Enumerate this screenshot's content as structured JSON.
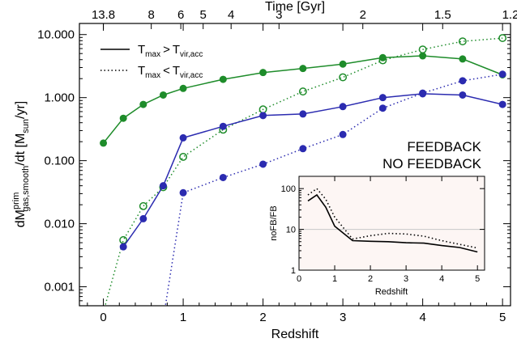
{
  "chart_data": [
    {
      "type": "line",
      "xlabel": "Redshift",
      "ylabel": "dM^prim_gas,smooth/dt [M_sun/yr]",
      "ylabel_parts": {
        "base": "dM",
        "sup": "prim",
        "sub": "gas,smooth",
        "tail": "/dt [M",
        "unit_sub": "sun",
        "unit_tail": "/yr]"
      },
      "top_axis_label": "Time [Gyr]",
      "y_scale": "log",
      "xlim": [
        -0.3,
        5.1
      ],
      "ylim": [
        0.0005,
        15
      ],
      "x_ticks": [
        "0",
        "1",
        "2",
        "3",
        "4",
        "5"
      ],
      "y_ticks": [
        "0.001",
        "0.010",
        "0.100",
        "1.000",
        "10.000"
      ],
      "top_ticks": [
        {
          "label": "13.8",
          "z": 0.0
        },
        {
          "label": "8",
          "z": 0.6
        },
        {
          "label": "6",
          "z": 0.97
        },
        {
          "label": "5",
          "z": 1.25
        },
        {
          "label": "4",
          "z": 1.6
        },
        {
          "label": "3",
          "z": 2.2
        },
        {
          "label": "2",
          "z": 3.25
        },
        {
          "label": "1.5",
          "z": 4.25
        },
        {
          "label": "1.2",
          "z": 5.1
        }
      ],
      "legend": {
        "position": "top-left",
        "entries": [
          {
            "style": "solid",
            "T": "T",
            "sub1": "max",
            "op": ">",
            "T2": "T",
            "sub2": "vir,acc"
          },
          {
            "style": "dotted",
            "T": "T",
            "sub1": "max",
            "op": "<",
            "T2": "T",
            "sub2": "vir,acc"
          }
        ]
      },
      "annotations": [
        {
          "text": "FEEDBACK",
          "color": "#2b2bb0"
        },
        {
          "text": "NO FEEDBACK",
          "color": "#1e8c2a"
        }
      ],
      "series": [
        {
          "group": "NO FEEDBACK",
          "style": "solid",
          "color": "#1e8c2a",
          "marker": "filled",
          "x": [
            0.0,
            0.25,
            0.5,
            0.75,
            1.0,
            1.5,
            2.0,
            2.5,
            3.0,
            3.5,
            4.0,
            4.5,
            5.0
          ],
          "y": [
            0.19,
            0.47,
            0.78,
            1.1,
            1.4,
            1.95,
            2.5,
            2.9,
            3.4,
            4.3,
            4.6,
            4.1,
            2.3
          ]
        },
        {
          "group": "NO FEEDBACK",
          "style": "dotted",
          "color": "#1e8c2a",
          "marker": "open",
          "x": [
            0.0,
            0.25,
            0.5,
            0.75,
            1.0,
            1.5,
            2.0,
            2.5,
            3.0,
            3.5,
            4.0,
            4.5,
            5.0
          ],
          "y": [
            0.0004,
            0.0055,
            0.019,
            0.038,
            0.115,
            0.31,
            0.65,
            1.25,
            2.1,
            3.9,
            5.8,
            7.8,
            8.8
          ]
        },
        {
          "group": "FEEDBACK",
          "style": "solid",
          "color": "#2b2bb0",
          "marker": "filled",
          "x": [
            0.25,
            0.5,
            0.75,
            1.0,
            1.5,
            2.0,
            2.5,
            3.0,
            3.5,
            4.0,
            4.5,
            5.0
          ],
          "y": [
            0.0043,
            0.012,
            0.04,
            0.23,
            0.35,
            0.52,
            0.55,
            0.72,
            1.0,
            1.15,
            1.1,
            0.78
          ]
        },
        {
          "group": "FEEDBACK",
          "style": "dotted",
          "color": "#2b2bb0",
          "marker": "filled",
          "x": [
            0.75,
            1.0,
            1.5,
            2.0,
            2.5,
            3.0,
            3.5,
            4.0,
            4.5,
            5.0
          ],
          "y": [
            0.0003,
            0.031,
            0.054,
            0.088,
            0.155,
            0.26,
            0.68,
            1.18,
            1.85,
            2.35
          ]
        }
      ]
    },
    {
      "type": "line",
      "xlabel": "Redshift",
      "ylabel": "noFB/FB",
      "y_scale": "log",
      "xlim": [
        0,
        5.2
      ],
      "ylim": [
        1,
        200
      ],
      "x_ticks": [
        "0",
        "1",
        "2",
        "3",
        "4",
        "5"
      ],
      "y_ticks": [
        "1",
        "10",
        "100"
      ],
      "reference_line": 10,
      "series": [
        {
          "style": "solid",
          "color": "#000000",
          "x": [
            0.25,
            0.5,
            0.75,
            1.0,
            1.5,
            2.0,
            2.5,
            3.0,
            3.5,
            4.0,
            4.5,
            5.0
          ],
          "y": [
            50,
            70,
            35,
            12,
            5.3,
            5.1,
            5.0,
            4.7,
            4.6,
            4.0,
            3.6,
            2.8
          ]
        },
        {
          "style": "dotted",
          "color": "#000000",
          "x": [
            0.25,
            0.5,
            0.75,
            1.0,
            1.5,
            2.0,
            2.5,
            3.0,
            3.5,
            4.0,
            4.5,
            5.0
          ],
          "y": [
            70,
            100,
            55,
            20,
            5.8,
            7.0,
            8.0,
            7.7,
            6.8,
            5.3,
            4.3,
            3.5
          ]
        }
      ]
    }
  ]
}
